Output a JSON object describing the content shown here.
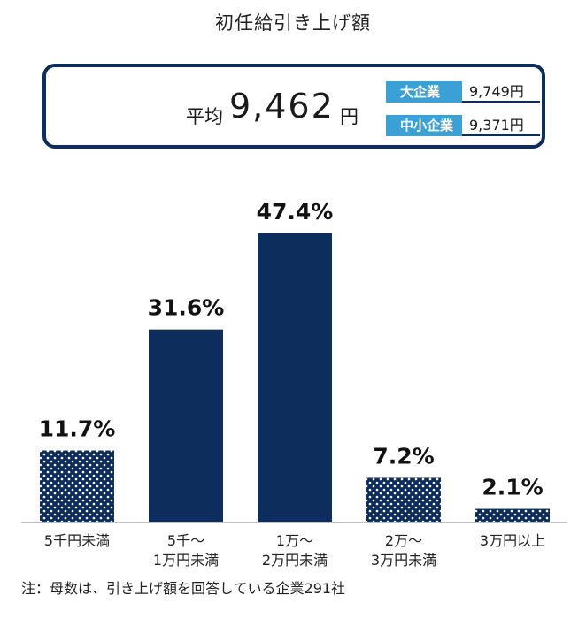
{
  "title": "初任給引き上げ額",
  "summary": {
    "avg_label": "平均",
    "avg_value": "9,462",
    "avg_unit": "円",
    "items": [
      {
        "label": "大企業",
        "value": "9,749円"
      },
      {
        "label": "中小企業",
        "value": "9,371円"
      }
    ]
  },
  "chart_data": {
    "type": "bar",
    "categories": [
      "5千円未満",
      "5千～\n1万円未満",
      "1万～\n2万円未満",
      "2万～\n3万円未満",
      "3万円以上"
    ],
    "values": [
      11.7,
      31.6,
      47.4,
      7.2,
      2.1
    ],
    "value_labels": [
      "11.7%",
      "31.6%",
      "47.4%",
      "7.2%",
      "2.1%"
    ],
    "patterns": [
      "dotted",
      "solid",
      "solid",
      "dotted",
      "dotted"
    ],
    "colors": {
      "bar": "#0d2d5c",
      "dot": "#ffffff"
    },
    "title": "",
    "xlabel": "",
    "ylabel": "",
    "grid": false,
    "legend": "none"
  },
  "note": "注：母数は、引き上げ額を回答している企業291社"
}
